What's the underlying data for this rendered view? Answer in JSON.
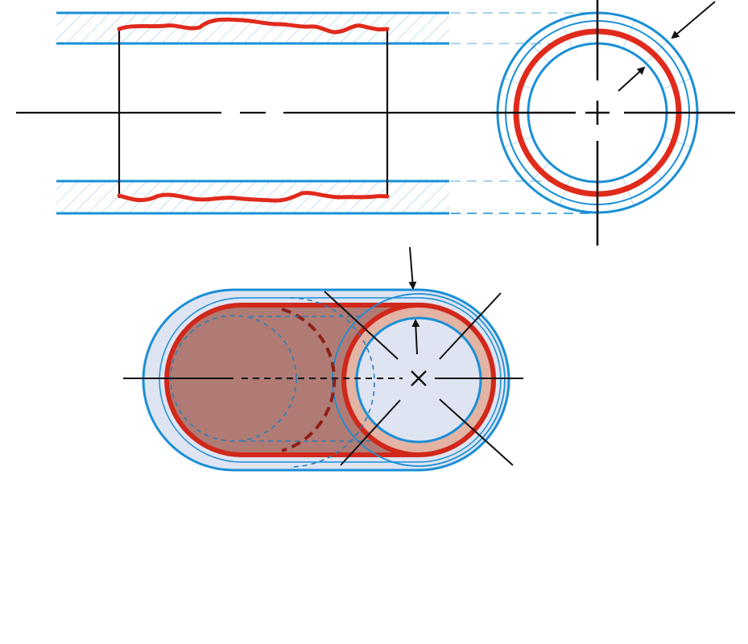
{
  "figure": {
    "description_visible_text": "",
    "colors": {
      "outline_blue": "#1a8fd6",
      "hatch_blue": "#9ccbea",
      "light_fill_blue": "#dfe4f2",
      "surface_red": "#e02a1c",
      "dark_red": "#b5291f",
      "cut_fill": "#b07b74",
      "bore_fill": "#d8e0f0",
      "axis_black": "#111111",
      "tan_fill": "#e3b3a4"
    },
    "icons": {
      "arrow": "arrow-icon",
      "centre_mark": "cross-icon"
    }
  }
}
